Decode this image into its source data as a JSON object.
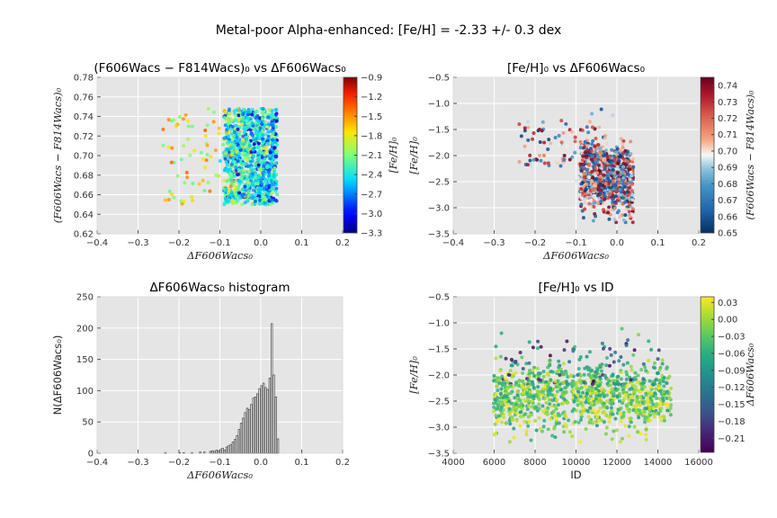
{
  "figure_title": "Metal-poor Alpha-enhanced: [Fe/H] = -2.33 +/- 0.3 dex",
  "colors": {
    "panel_bg": "#e5e5e5",
    "grid": "#ffffff",
    "bar_edge": "#555555",
    "bar_fill": "#ffffff"
  },
  "chart_data": [
    {
      "type": "scatter",
      "title": "(F606Wacs − F814Wacs)₀ vs ΔF606Wacs₀",
      "xlabel": "ΔF606Wacs₀",
      "ylabel": "(F606Wacs − F814Wacs)₀",
      "xlim": [
        -0.4,
        0.2
      ],
      "ylim": [
        0.62,
        0.78
      ],
      "xticks": [
        "−0.4",
        "−0.3",
        "−0.2",
        "−0.1",
        "0.0",
        "0.1",
        "0.2"
      ],
      "yticks": [
        "0.62",
        "0.64",
        "0.66",
        "0.68",
        "0.70",
        "0.72",
        "0.74",
        "0.76",
        "0.78"
      ],
      "grid": true,
      "colorbar": {
        "label": "[Fe/H]₀",
        "colormap": "jet",
        "range": [
          -3.3,
          -0.9
        ],
        "ticks": [
          "−0.9",
          "−1.2",
          "−1.5",
          "−1.8",
          "−2.1",
          "−2.4",
          "−2.7",
          "−3.0",
          "−3.3"
        ]
      },
      "points_description": "~1500 stars concentrated at x -0.08 to 0.04, y 0.65-0.75; sparse metal-rich tail to x -0.24"
    },
    {
      "type": "scatter",
      "title": "[Fe/H]₀ vs ΔF606Wacs₀",
      "xlabel": "ΔF606Wacs₀",
      "ylabel": "[Fe/H]₀",
      "xlim": [
        -0.4,
        0.2
      ],
      "ylim": [
        -3.5,
        -0.5
      ],
      "xticks": [
        "−0.4",
        "−0.3",
        "−0.2",
        "−0.1",
        "0.0",
        "0.1",
        "0.2"
      ],
      "yticks": [
        "−3.5",
        "−3.0",
        "−2.5",
        "−2.0",
        "−1.5",
        "−1.0",
        "−0.5"
      ],
      "grid": true,
      "colorbar": {
        "label": "(F606Wacs − F814Wacs)₀",
        "colormap": "RdBu_r",
        "range": [
          0.65,
          0.745
        ],
        "ticks": [
          "0.74",
          "0.73",
          "0.72",
          "0.71",
          "0.70",
          "0.69",
          "0.68",
          "0.67",
          "0.66",
          "0.65"
        ]
      }
    },
    {
      "type": "bar",
      "title": "ΔF606Wacs₀ histogram",
      "xlabel": "ΔF606Wacs₀",
      "ylabel": "N(ΔF606Wacs₀)",
      "xlim": [
        -0.4,
        0.2
      ],
      "ylim": [
        0,
        250
      ],
      "xticks": [
        "−0.4",
        "−0.3",
        "−0.2",
        "−0.1",
        "0.0",
        "0.1",
        "0.2"
      ],
      "yticks": [
        "0",
        "50",
        "100",
        "150",
        "200",
        "250"
      ],
      "grid": true,
      "bin_width": 0.005,
      "x": [
        -0.235,
        -0.2,
        -0.19,
        -0.17,
        -0.15,
        -0.14,
        -0.125,
        -0.12,
        -0.115,
        -0.11,
        -0.105,
        -0.1,
        -0.095,
        -0.09,
        -0.085,
        -0.08,
        -0.075,
        -0.07,
        -0.065,
        -0.06,
        -0.055,
        -0.05,
        -0.045,
        -0.04,
        -0.035,
        -0.03,
        -0.025,
        -0.02,
        -0.015,
        -0.01,
        -0.005,
        0.0,
        0.005,
        0.01,
        0.015,
        0.02,
        0.025,
        0.03,
        0.035,
        0.04
      ],
      "values": [
        1,
        1,
        1,
        1,
        2,
        2,
        3,
        4,
        3,
        5,
        4,
        6,
        8,
        5,
        10,
        12,
        14,
        18,
        22,
        28,
        38,
        48,
        56,
        65,
        72,
        70,
        78,
        88,
        90,
        95,
        103,
        108,
        112,
        105,
        102,
        120,
        207,
        125,
        90,
        23
      ]
    },
    {
      "type": "scatter",
      "title": "[Fe/H]₀ vs ID",
      "xlabel": "ID",
      "ylabel": "[Fe/H]₀",
      "xlim": [
        4000,
        16000
      ],
      "ylim": [
        -3.5,
        -0.5
      ],
      "xticks": [
        "4000",
        "6000",
        "8000",
        "10000",
        "12000",
        "14000",
        "16000"
      ],
      "yticks": [
        "−3.5",
        "−3.0",
        "−2.5",
        "−2.0",
        "−1.5",
        "−1.0",
        "−0.5"
      ],
      "grid": true,
      "colorbar": {
        "label": "ΔF606Wacs₀",
        "colormap": "viridis",
        "range": [
          -0.235,
          0.04
        ],
        "ticks": [
          "0.03",
          "0.00",
          "−0.03",
          "−0.06",
          "−0.09",
          "−0.12",
          "−0.15",
          "−0.18",
          "−0.21"
        ]
      }
    }
  ]
}
